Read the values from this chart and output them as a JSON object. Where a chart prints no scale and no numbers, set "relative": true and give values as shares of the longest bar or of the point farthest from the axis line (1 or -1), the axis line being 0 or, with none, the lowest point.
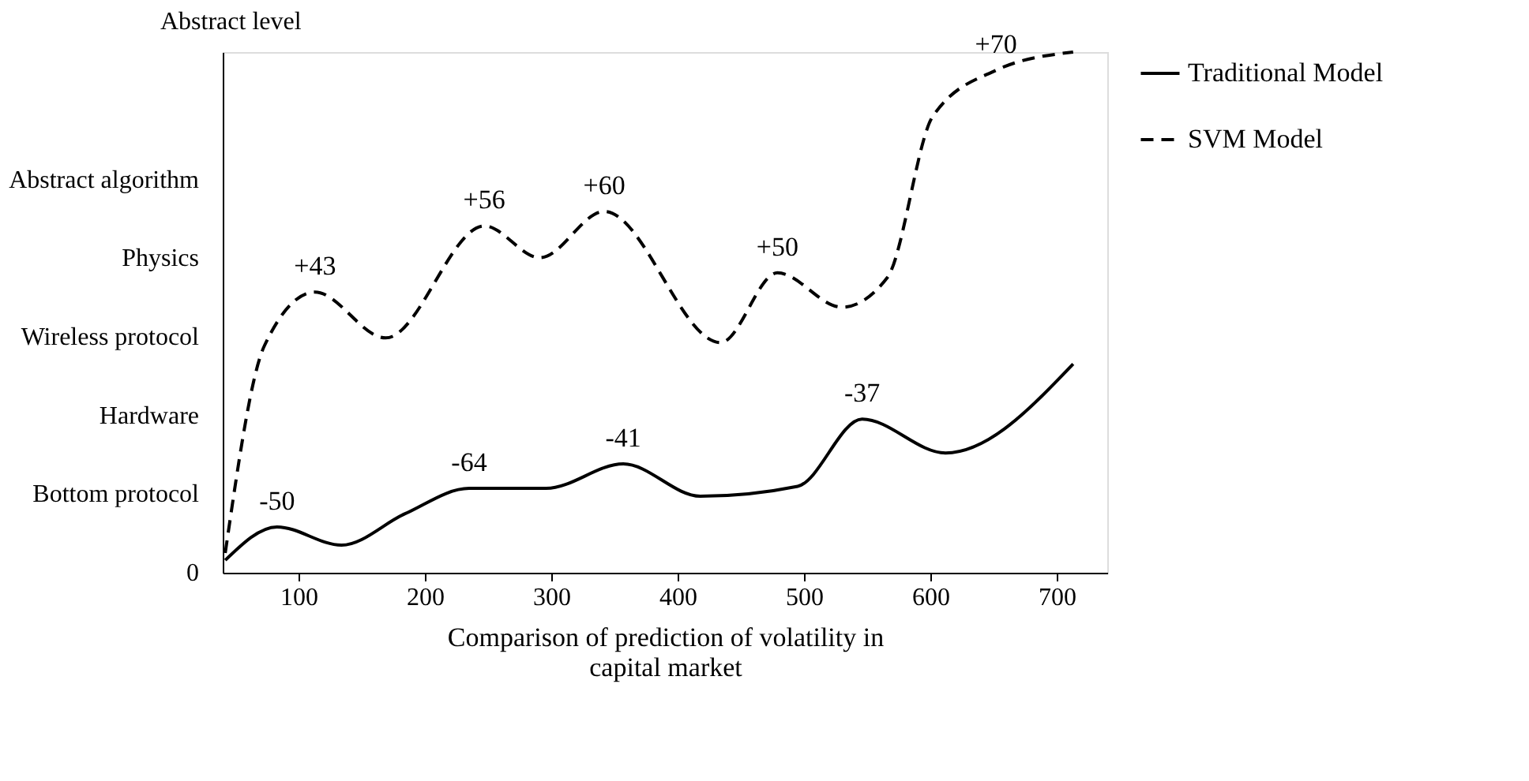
{
  "chart_data": {
    "type": "line",
    "relative": true,
    "xlabel": "Comparison of prediction of volatility in capital market",
    "ylabel": "Abstract level",
    "xlim": [
      40,
      740
    ],
    "xticks": [
      100,
      200,
      300,
      400,
      500,
      600,
      700
    ],
    "legend": "right",
    "series": [
      {
        "name": "Traditional Model",
        "color": "#000000",
        "line_style": "solid",
        "x": [
          42,
          83,
          134,
          184,
          235,
          296,
          357,
          418,
          495,
          546,
          612,
          713
        ],
        "values": [
          0.024,
          0.088,
          0.053,
          0.113,
          0.162,
          0.162,
          0.209,
          0.147,
          0.166,
          0.295,
          0.23,
          0.401
        ]
      },
      {
        "name": "SVM Model",
        "color": "#000000",
        "line_style": "dashed",
        "x": [
          42,
          73,
          113,
          169,
          247,
          291,
          342,
          434,
          479,
          530,
          566,
          602,
          652,
          713
        ],
        "values": [
          0.038,
          0.436,
          0.539,
          0.451,
          0.666,
          0.605,
          0.694,
          0.442,
          0.576,
          0.51,
          0.567,
          0.877,
          0.965,
          1.0
        ]
      }
    ],
    "annotations": [
      "0",
      "Bottom protocol",
      "Hardware",
      "Wireless protocol",
      "Physics",
      "Abstract algorithm",
      {
        "text": "-50",
        "x": 83,
        "y": 0.088
      },
      {
        "text": "-64",
        "x": 235,
        "y": 0.162
      },
      {
        "text": "-41",
        "x": 357,
        "y": 0.209
      },
      {
        "text": "-37",
        "x": 546,
        "y": 0.295
      },
      {
        "text": "+43",
        "x": 113,
        "y": 0.539
      },
      {
        "text": "+56",
        "x": 247,
        "y": 0.666
      },
      {
        "text": "+60",
        "x": 342,
        "y": 0.694
      },
      {
        "text": "+50",
        "x": 479,
        "y": 0.576
      },
      {
        "text": "+70",
        "x": 652,
        "y": 0.965
      }
    ]
  }
}
